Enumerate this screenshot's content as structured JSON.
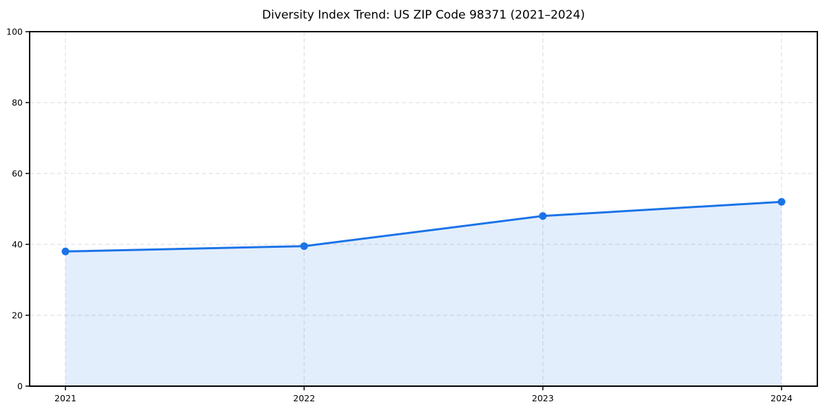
{
  "chart_data": {
    "type": "area",
    "title": "Diversity Index Trend: US ZIP Code 98371 (2021–2024)",
    "x": [
      2021,
      2022,
      2023,
      2024
    ],
    "xticklabels": [
      "2021",
      "2022",
      "2023",
      "2024"
    ],
    "series": [
      {
        "name": "Diversity Index",
        "values": [
          38,
          39.5,
          48,
          52
        ]
      }
    ],
    "xlabel": "",
    "ylabel": "",
    "ylim": [
      0,
      100
    ],
    "yticks": [
      0,
      20,
      40,
      60,
      80,
      100
    ],
    "x_margin_fraction": 0.05,
    "grid": "dashed, both axes",
    "legend_position": "none",
    "colors": {
      "line": "#1a73e8",
      "marker": "#1a73e8",
      "fill": "#1a73e8",
      "fill_opacity": 0.12,
      "gridline": "#e0e0e0",
      "axis_frame": "#000000",
      "tick_text": "#000000",
      "title_text": "#000000",
      "background": "#ffffff"
    }
  }
}
